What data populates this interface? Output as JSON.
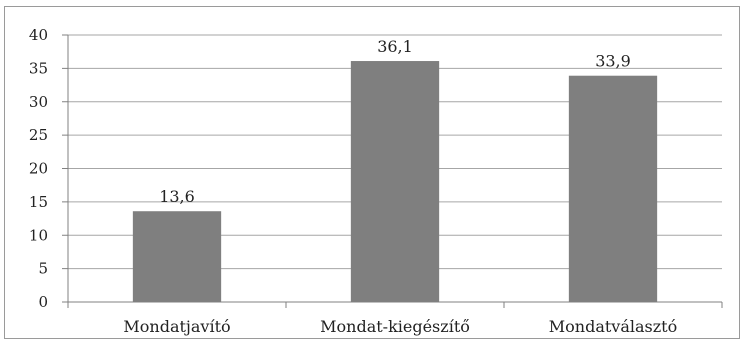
{
  "chart_data": {
    "type": "bar",
    "categories": [
      "Mondatjavító",
      "Mondat-kiegészítő",
      "Mondatválasztó"
    ],
    "values": [
      13.6,
      36.1,
      33.9
    ],
    "data_labels": [
      "13,6",
      "36,1",
      "33,9"
    ],
    "yticks": [
      0,
      5,
      10,
      15,
      20,
      25,
      30,
      35,
      40
    ],
    "ylim": [
      0,
      40
    ],
    "grid": true,
    "legend": "none",
    "bar_color": "#7f7f7f",
    "grid_color": "#a6a6a6",
    "title": "",
    "xlabel": "",
    "ylabel": ""
  }
}
